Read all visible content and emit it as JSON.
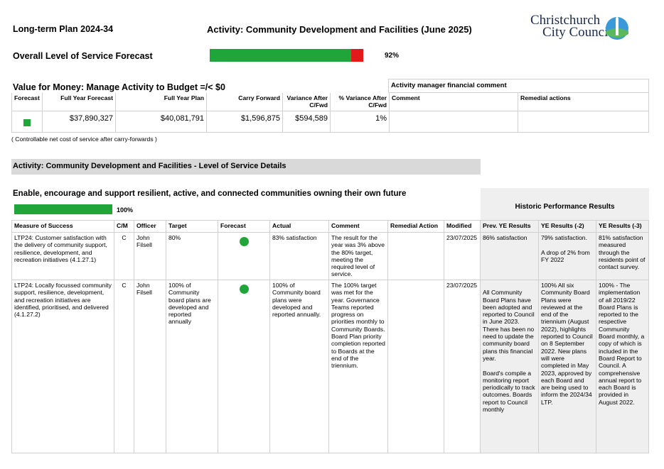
{
  "header": {
    "plan": "Long-term Plan 2024-34",
    "activity": "Activity: Community Development and Facilities (June 2025)",
    "logo_line1": "Christchurch",
    "logo_line2": "City Council"
  },
  "overall": {
    "label": "Overall Level of Service Forecast",
    "value": 92,
    "value_label": "92%"
  },
  "vfm": {
    "title": "Value for Money: Manage Activity to Budget =/< $0",
    "comment_title": "Activity manager financial comment",
    "columns": [
      "Forecast",
      "Full Year Forecast",
      "Full Year Plan",
      "Carry Forward",
      "Variance After C/Fwd",
      "% Variance After C/Fwd",
      "Comment",
      "Remedial actions"
    ],
    "row": [
      "",
      "$37,890,327",
      "$40,081,791",
      "$1,596,875",
      "$594,589",
      "1%",
      "",
      ""
    ],
    "note": "( Controllable net cost of service after carry-forwards )"
  },
  "section_title": "Activity: Community Development and Facilities - Level of Service Details",
  "goal": {
    "title": "Enable, encourage and support resilient, active, and connected communities owning their own future",
    "value": 100,
    "value_label": "100%"
  },
  "historic_title": "Historic Performance Results",
  "table": {
    "columns": [
      "Measure of Success",
      "C/M",
      "Officer",
      "Target",
      "Forecast",
      "Actual",
      "Comment",
      "Remedial Action",
      "Modified",
      "Prev. YE Results",
      "YE Results (-2)",
      "YE Results (-3)"
    ],
    "rows": [
      [
        "LTP24: Customer satisfaction with the delivery of community support, resilience, development, and recreation initiatives (4.1.27.1)",
        "C",
        "John Filsell",
        "80%",
        "",
        "83% satisfaction",
        "The result for the year was 3% above the 80% target, meeting the required level of service.",
        "",
        "23/07/2025",
        "86% satisfaction",
        "79% satisfaction.\n\nA drop of 2% from FY 2022",
        "81% satisfaction measured through the residents point of contact survey."
      ],
      [
        "LTP24: Locally focussed community support, resilience, development, and recreation initiatives are identified, prioritised, and delivered (4.1.27.2)",
        "C",
        "John Filsell",
        "100% of Community board plans are developed and reported annually",
        "",
        "100% of Community board plans were developed and reported annually.",
        "The 100% target was met for the year. Governance Teams reported progress on priorities monthly to Community Boards. Board Plan priority completion reported to Boards at the end of the triennium.",
        "",
        "23/07/2025",
        "\nAll Community Board Plans have been adopted and reported to Council in June 2023. There has been no need to update the community board plans this financial year.\n\nBoard's compile a monitoring report periodically to track outcomes. Boards report to Council monthly",
        "100% All six Community Board Plans were reviewed at the end of the triennium (August 2022), highlights reported to Council on 8 September 2022. New plans will were completed in May 2023, approved by each Board and are being used to inform the 2024/34 LTP.",
        "100% - The implementation of all 2019/22 Board Plans is reported to the respective Community Board monthly, a copy of which is included in the Board Report to Council.  A comprehensive annual report to each Board is provided in August 2022."
      ]
    ]
  }
}
